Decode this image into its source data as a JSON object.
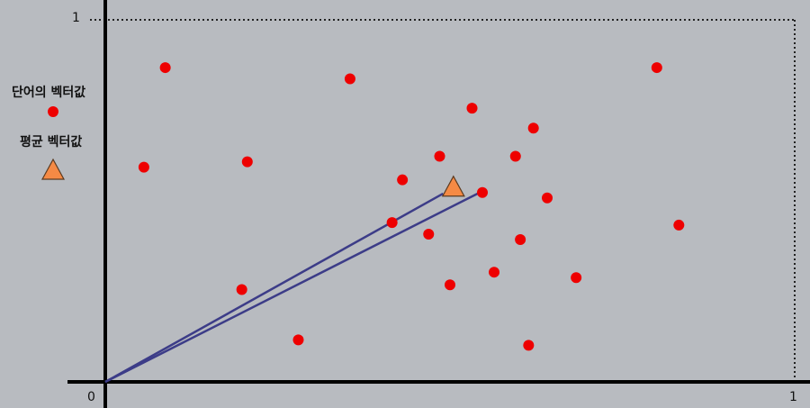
{
  "axis": {
    "x_origin_label": "0",
    "x_max_label": "1",
    "y_max_label": "1"
  },
  "legend": {
    "word_vector_label": "단어의 벡터값",
    "average_vector_label": "평균 벡터값"
  },
  "colors": {
    "background": "#b8bbc0",
    "point": "#ee0000",
    "triangle_fill": "#f58a45",
    "triangle_stroke": "#5a3a20",
    "vector_line": "#3c3c88",
    "axis": "#000000"
  },
  "chart_data": {
    "type": "scatter",
    "xlim": [
      0,
      1
    ],
    "ylim": [
      0,
      1
    ],
    "word_vectors": [
      {
        "x": 0.087,
        "y": 0.868
      },
      {
        "x": 0.355,
        "y": 0.837
      },
      {
        "x": 0.8,
        "y": 0.868
      },
      {
        "x": 0.532,
        "y": 0.756
      },
      {
        "x": 0.621,
        "y": 0.701
      },
      {
        "x": 0.056,
        "y": 0.593
      },
      {
        "x": 0.206,
        "y": 0.608
      },
      {
        "x": 0.485,
        "y": 0.623
      },
      {
        "x": 0.595,
        "y": 0.623
      },
      {
        "x": 0.431,
        "y": 0.558
      },
      {
        "x": 0.547,
        "y": 0.523
      },
      {
        "x": 0.641,
        "y": 0.508
      },
      {
        "x": 0.416,
        "y": 0.44
      },
      {
        "x": 0.469,
        "y": 0.408
      },
      {
        "x": 0.602,
        "y": 0.393
      },
      {
        "x": 0.832,
        "y": 0.433
      },
      {
        "x": 0.564,
        "y": 0.303
      },
      {
        "x": 0.5,
        "y": 0.268
      },
      {
        "x": 0.683,
        "y": 0.288
      },
      {
        "x": 0.198,
        "y": 0.255
      },
      {
        "x": 0.28,
        "y": 0.116
      },
      {
        "x": 0.614,
        "y": 0.101
      }
    ],
    "average_vector": {
      "x": 0.505,
      "y": 0.538
    },
    "vector_lines": [
      {
        "from": [
          0,
          0
        ],
        "to": [
          0.49,
          0.52
        ]
      },
      {
        "from": [
          0,
          0
        ],
        "to": [
          0.54,
          0.52
        ]
      }
    ]
  }
}
